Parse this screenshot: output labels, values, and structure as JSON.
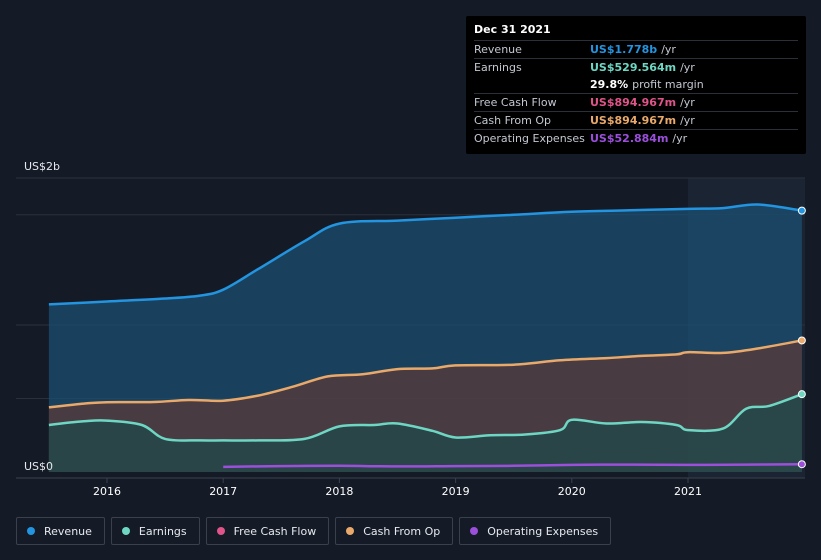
{
  "chart_data": {
    "type": "area",
    "y_label_top": "US$2b",
    "y_label_bottom": "US$0",
    "ylim": [
      0,
      2000
    ],
    "xlim": [
      2015.5,
      2021.98
    ],
    "x_ticks": [
      {
        "value": 2016,
        "label": "2016"
      },
      {
        "value": 2017,
        "label": "2017"
      },
      {
        "value": 2018,
        "label": "2018"
      },
      {
        "value": 2019,
        "label": "2019"
      },
      {
        "value": 2020,
        "label": "2020"
      },
      {
        "value": 2021,
        "label": "2021"
      }
    ],
    "highlight_start": 2021.0,
    "series": [
      {
        "name": "Revenue",
        "color": "#2394df",
        "fill": "#1b4f72",
        "points": [
          [
            2015.5,
            1140
          ],
          [
            2016.0,
            1160
          ],
          [
            2016.5,
            1180
          ],
          [
            2016.8,
            1200
          ],
          [
            2017.0,
            1240
          ],
          [
            2017.3,
            1380
          ],
          [
            2017.7,
            1570
          ],
          [
            2018.0,
            1690
          ],
          [
            2018.5,
            1710
          ],
          [
            2019.0,
            1730
          ],
          [
            2019.5,
            1750
          ],
          [
            2020.0,
            1770
          ],
          [
            2020.5,
            1780
          ],
          [
            2021.0,
            1790
          ],
          [
            2021.3,
            1795
          ],
          [
            2021.6,
            1820
          ],
          [
            2021.98,
            1778
          ]
        ]
      },
      {
        "name": "Cash From Op",
        "color": "#e9a96a",
        "fill": "#5a3a3a",
        "points": [
          [
            2015.5,
            440
          ],
          [
            2015.8,
            465
          ],
          [
            2016.0,
            475
          ],
          [
            2016.4,
            476
          ],
          [
            2016.7,
            490
          ],
          [
            2017.0,
            485
          ],
          [
            2017.3,
            520
          ],
          [
            2017.6,
            580
          ],
          [
            2017.9,
            650
          ],
          [
            2018.2,
            665
          ],
          [
            2018.5,
            700
          ],
          [
            2018.8,
            705
          ],
          [
            2019.0,
            725
          ],
          [
            2019.5,
            730
          ],
          [
            2019.9,
            760
          ],
          [
            2020.3,
            775
          ],
          [
            2020.6,
            790
          ],
          [
            2020.9,
            800
          ],
          [
            2021.0,
            815
          ],
          [
            2021.3,
            810
          ],
          [
            2021.6,
            840
          ],
          [
            2021.98,
            894.967
          ]
        ]
      },
      {
        "name": "Earnings",
        "color": "#6ed7c4",
        "fill": "#1f4a4a",
        "points": [
          [
            2015.5,
            320
          ],
          [
            2015.8,
            345
          ],
          [
            2016.0,
            350
          ],
          [
            2016.3,
            320
          ],
          [
            2016.5,
            225
          ],
          [
            2016.8,
            215
          ],
          [
            2017.0,
            215
          ],
          [
            2017.3,
            215
          ],
          [
            2017.7,
            225
          ],
          [
            2018.0,
            310
          ],
          [
            2018.3,
            320
          ],
          [
            2018.5,
            330
          ],
          [
            2018.8,
            280
          ],
          [
            2019.0,
            235
          ],
          [
            2019.3,
            250
          ],
          [
            2019.6,
            255
          ],
          [
            2019.9,
            285
          ],
          [
            2020.0,
            355
          ],
          [
            2020.3,
            330
          ],
          [
            2020.6,
            340
          ],
          [
            2020.9,
            320
          ],
          [
            2021.0,
            285
          ],
          [
            2021.3,
            295
          ],
          [
            2021.5,
            430
          ],
          [
            2021.7,
            450
          ],
          [
            2021.98,
            529.564
          ]
        ]
      },
      {
        "name": "Operating Expenses",
        "color": "#9b4fdb",
        "fill": "none",
        "points": [
          [
            2017.0,
            35
          ],
          [
            2017.5,
            40
          ],
          [
            2018.0,
            42
          ],
          [
            2018.5,
            38
          ],
          [
            2019.0,
            40
          ],
          [
            2019.5,
            42
          ],
          [
            2020.0,
            48
          ],
          [
            2020.5,
            50
          ],
          [
            2021.0,
            48
          ],
          [
            2021.5,
            50
          ],
          [
            2021.98,
            52.884
          ]
        ]
      }
    ],
    "tooltip": {
      "date": "Dec 31 2021",
      "rows": [
        {
          "key": "Revenue",
          "value": "US$1.778b",
          "unit": "/yr",
          "color": "#2394df"
        },
        {
          "key": "Earnings",
          "value": "US$529.564m",
          "unit": "/yr",
          "color": "#6ed7c4"
        },
        {
          "key": "",
          "value": "29.8%",
          "unit": "profit margin",
          "color": "#ffffff",
          "margin": true
        },
        {
          "key": "Free Cash Flow",
          "value": "US$894.967m",
          "unit": "/yr",
          "color": "#e0548a"
        },
        {
          "key": "Cash From Op",
          "value": "US$894.967m",
          "unit": "/yr",
          "color": "#e9a96a"
        },
        {
          "key": "Operating Expenses",
          "value": "US$52.884m",
          "unit": "/yr",
          "color": "#9b4fdb"
        }
      ]
    },
    "legend": [
      {
        "name": "Revenue",
        "color": "#2394df"
      },
      {
        "name": "Earnings",
        "color": "#6ed7c4"
      },
      {
        "name": "Free Cash Flow",
        "color": "#e0548a"
      },
      {
        "name": "Cash From Op",
        "color": "#e9a96a"
      },
      {
        "name": "Operating Expenses",
        "color": "#9b4fdb"
      }
    ]
  }
}
